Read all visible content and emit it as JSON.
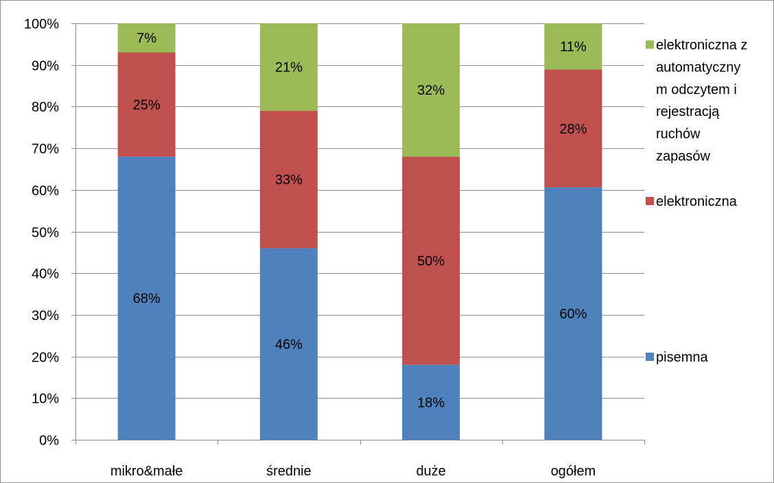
{
  "chart_data": {
    "type": "bar",
    "stacked": true,
    "percent": true,
    "categories": [
      "mikro&małe",
      "średnie",
      "duże",
      "ogółem"
    ],
    "series": [
      {
        "name": "pisemna",
        "values": [
          68,
          46,
          18,
          60
        ],
        "labels": [
          "68%",
          "46%",
          "18%",
          "60%"
        ],
        "color": "#4f81bd"
      },
      {
        "name": "elektroniczna",
        "values": [
          25,
          33,
          50,
          28
        ],
        "labels": [
          "25%",
          "33%",
          "50%",
          "28%"
        ],
        "color": "#c0504d"
      },
      {
        "name": "elektroniczna z automatyczny m odczytem i rejestracją ruchów zapasów",
        "legend_lines": [
          "elektroniczna z",
          "automatyczny",
          "m odczytem i",
          "rejestracją",
          "ruchów",
          "zapasów"
        ],
        "values": [
          7,
          21,
          32,
          11
        ],
        "labels": [
          "7%",
          "21%",
          "32%",
          "11%"
        ],
        "color": "#9bbb59"
      }
    ],
    "y_ticks": [
      "0%",
      "10%",
      "20%",
      "30%",
      "40%",
      "50%",
      "60%",
      "70%",
      "80%",
      "90%",
      "100%"
    ],
    "ylim": [
      0,
      100
    ],
    "grid": true,
    "legend": "right",
    "title": "",
    "xlabel": "",
    "ylabel": ""
  }
}
